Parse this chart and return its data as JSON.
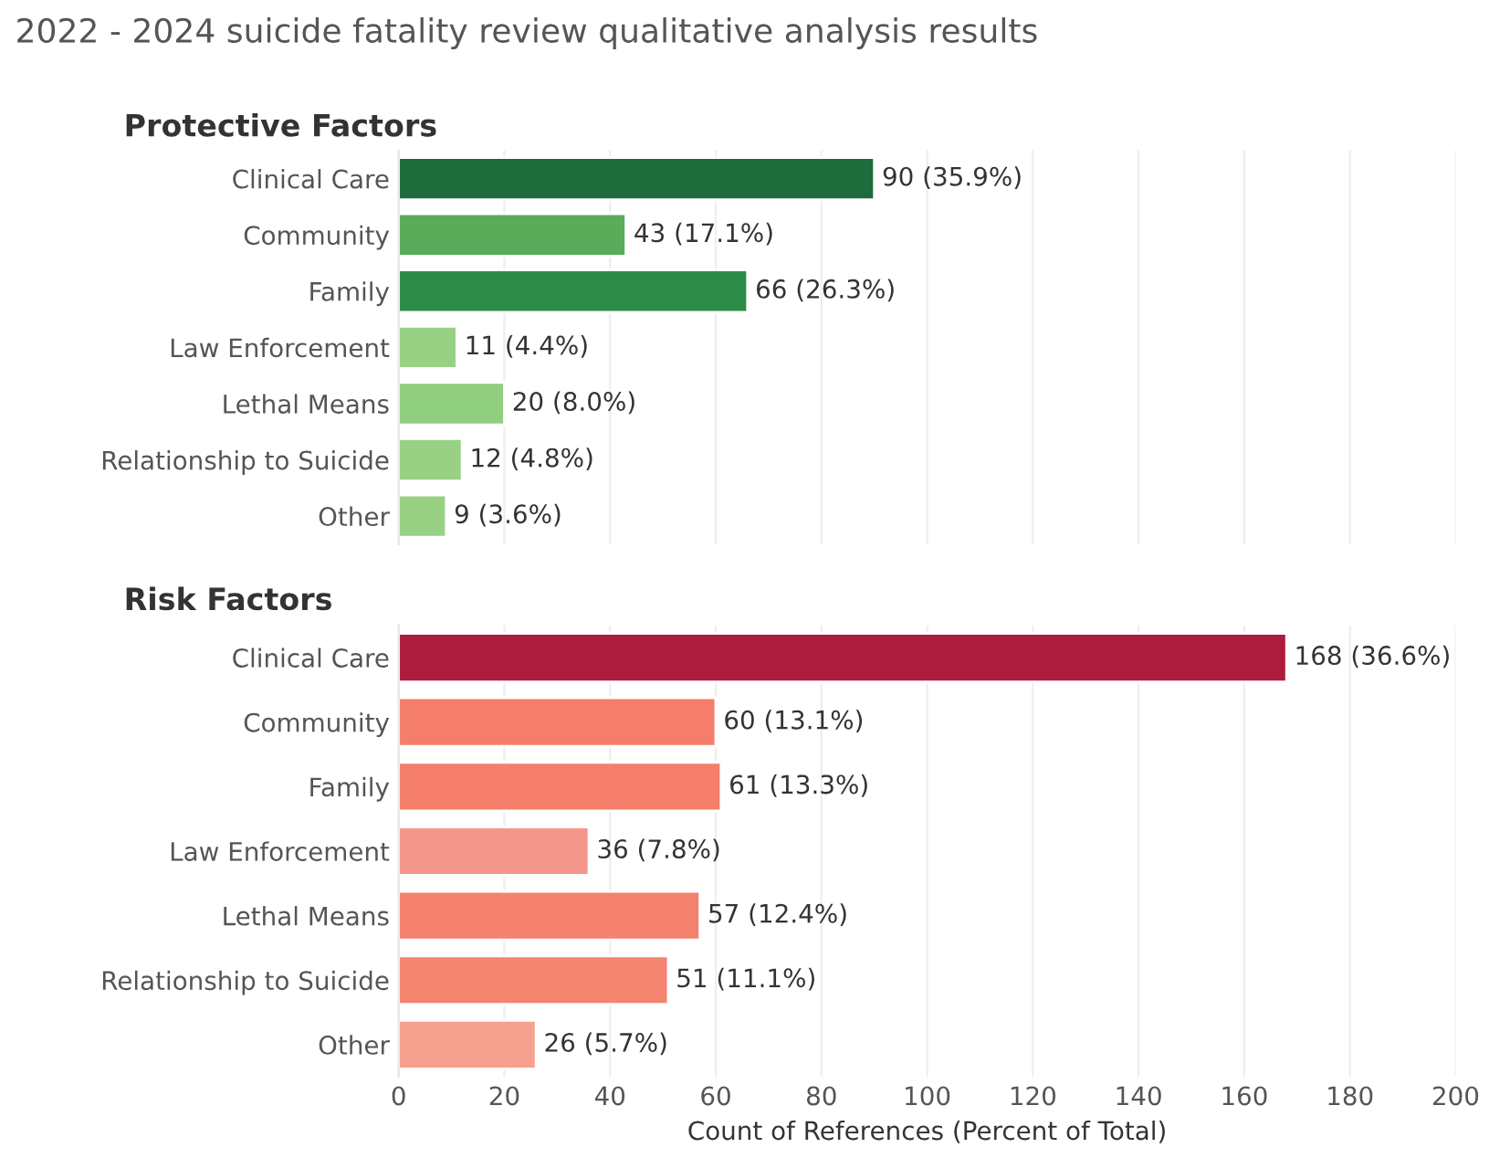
{
  "chart_data": [
    {
      "type": "bar",
      "orientation": "horizontal",
      "title": "2022 - 2024 suicide fatality review qualitative analysis results",
      "subtitle": "Protective Factors",
      "categories": [
        "Clinical Care",
        "Community",
        "Family",
        "Law Enforcement",
        "Lethal Means",
        "Relationship to Suicide",
        "Other"
      ],
      "values": [
        90,
        43,
        66,
        11,
        20,
        12,
        9
      ],
      "value_labels": [
        "90 (35.9%)",
        "43 (17.1%)",
        "66 (26.3%)",
        "11 (4.4%)",
        "20 (8.0%)",
        "12 (4.8%)",
        "9 (3.6%)"
      ],
      "colors": [
        "#1e6b3c",
        "#5aab5a",
        "#2e8b47",
        "#98d183",
        "#8fcf7e",
        "#98d183",
        "#98d183"
      ],
      "xlim": [
        0,
        200
      ],
      "xticks": [
        0,
        20,
        40,
        60,
        80,
        100,
        120,
        140,
        160,
        180,
        200
      ],
      "grid": "x",
      "tick_labels": "y"
    },
    {
      "type": "bar",
      "orientation": "horizontal",
      "subtitle": "Risk Factors",
      "xlabel": "Count of References (Percent of Total)",
      "categories": [
        "Clinical Care",
        "Community",
        "Family",
        "Law Enforcement",
        "Lethal Means",
        "Relationship to Suicide",
        "Other"
      ],
      "values": [
        168,
        60,
        61,
        36,
        57,
        51,
        26
      ],
      "value_labels": [
        "168 (36.6%)",
        "60 (13.1%)",
        "61 (13.3%)",
        "36 (7.8%)",
        "57 (12.4%)",
        "51 (11.1%)",
        "26 (5.7%)"
      ],
      "colors": [
        "#ad1c3c",
        "#f47e6a",
        "#f47e6a",
        "#f4978a",
        "#f4826e",
        "#f4836f",
        "#f6a08f"
      ],
      "xlim": [
        0,
        200
      ],
      "xticks": [
        0,
        20,
        40,
        60,
        80,
        100,
        120,
        140,
        160,
        180,
        200
      ],
      "grid": "x"
    }
  ]
}
